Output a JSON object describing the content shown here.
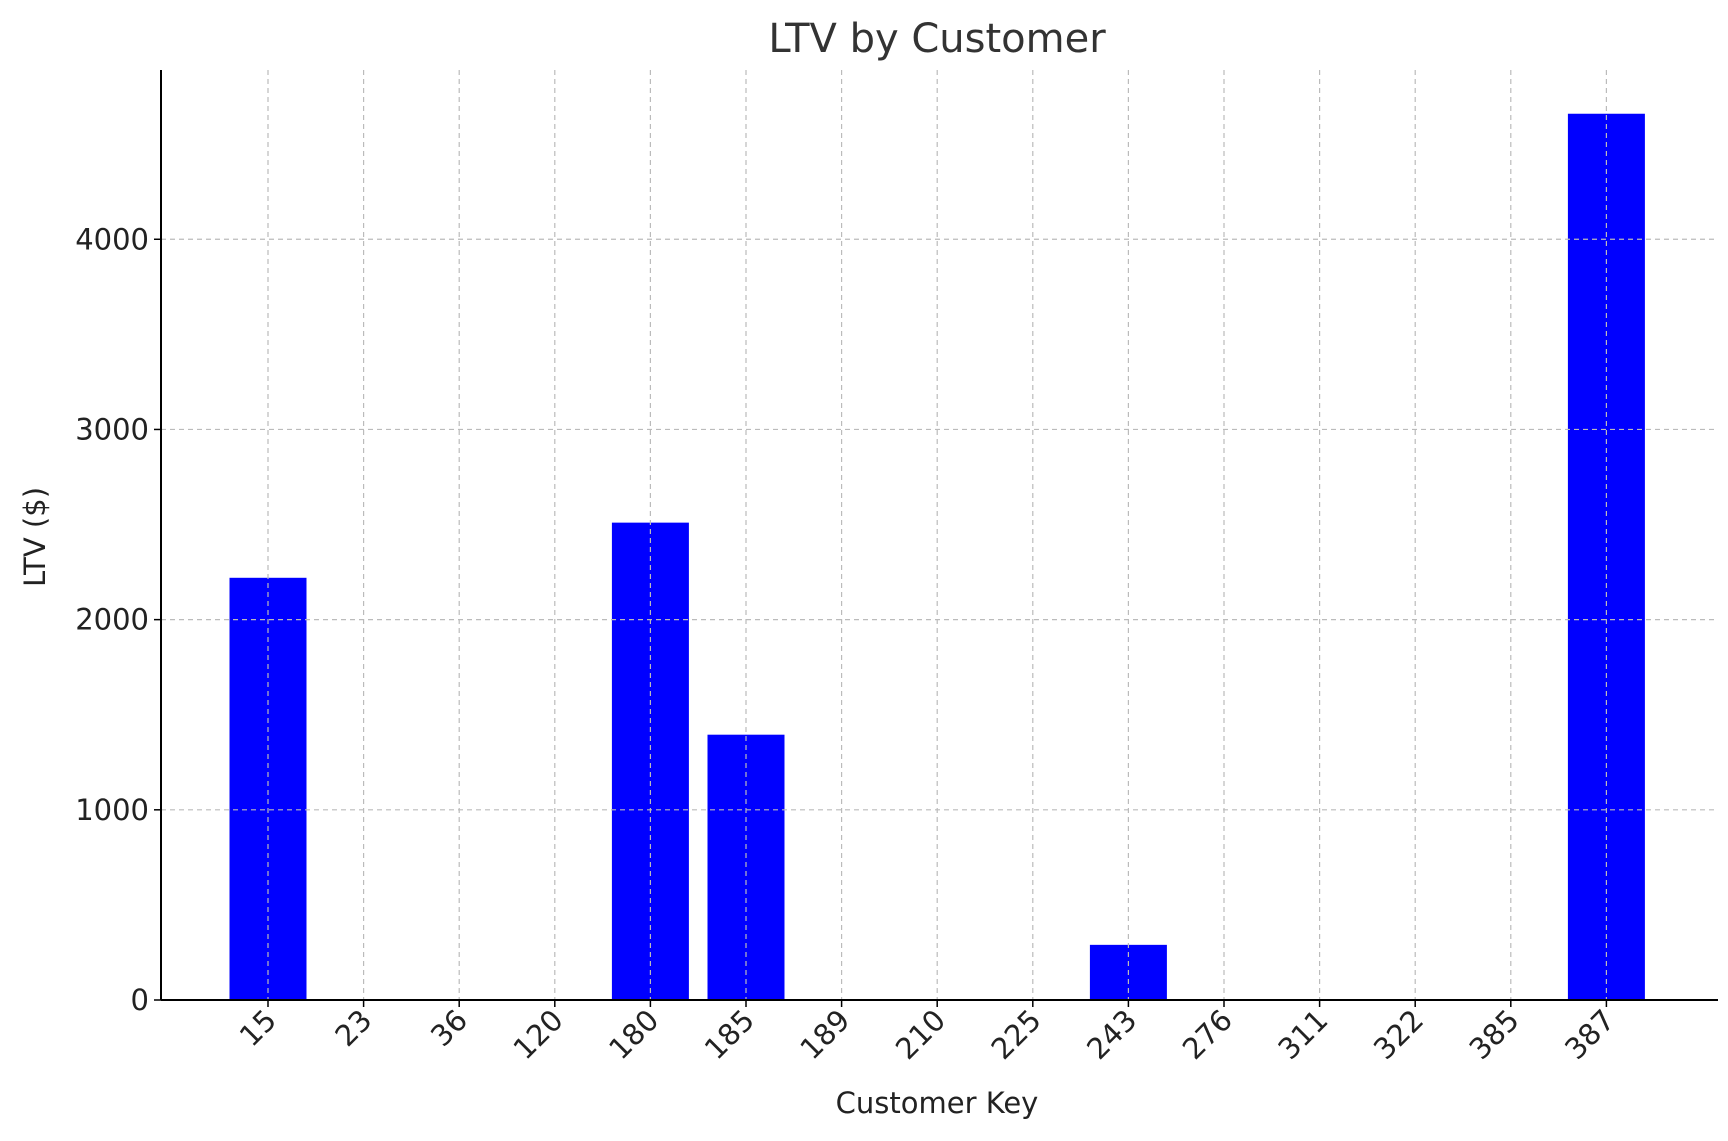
{
  "chart_data": {
    "type": "bar",
    "title": "LTV by Customer",
    "xlabel": "Customer Key",
    "ylabel": "LTV ($)",
    "categories": [
      "15",
      "23",
      "36",
      "120",
      "180",
      "185",
      "189",
      "210",
      "225",
      "243",
      "276",
      "311",
      "322",
      "385",
      "387"
    ],
    "values": [
      2220,
      0,
      0,
      0,
      2510,
      1395,
      0,
      0,
      0,
      290,
      0,
      0,
      0,
      0,
      4660
    ],
    "yticks": [
      0,
      1000,
      2000,
      3000,
      4000
    ],
    "ylim": [
      0,
      4890
    ],
    "grid": true,
    "bar_color": "#0000ff",
    "grid_color": "#bbbbbb",
    "axis_color": "#000000",
    "title_color": "#333333"
  }
}
